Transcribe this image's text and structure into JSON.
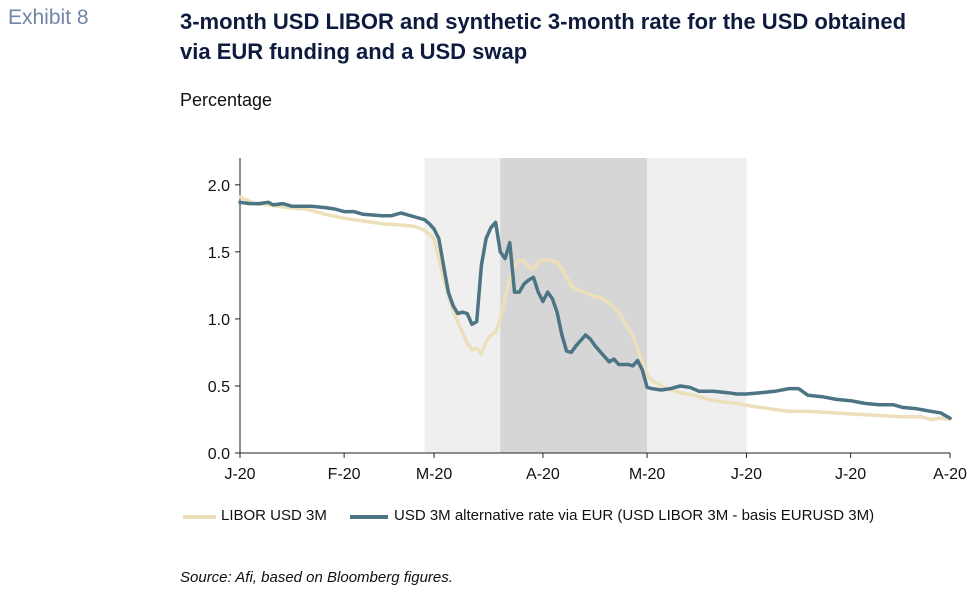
{
  "header": {
    "exhibit": "Exhibit 8",
    "title": "3-month USD LIBOR and synthetic 3-month rate for the USD obtained via EUR funding and a USD swap",
    "subtitle": "Percentage"
  },
  "footer": {
    "source": "Source: Afi, based on Bloomberg figures."
  },
  "chart_data": {
    "type": "line",
    "ylim": [
      0,
      2.2
    ],
    "yticks": [
      0.0,
      0.5,
      1.0,
      1.5,
      2.0
    ],
    "ytick_labels": [
      "0.0",
      "0.5",
      "1.0",
      "1.5",
      "2.0"
    ],
    "xlim": [
      0,
      150
    ],
    "xticks": [
      0,
      22,
      41,
      64,
      86,
      107,
      129,
      150
    ],
    "xtick_labels": [
      "J-20",
      "F-20",
      "M-20",
      "A-20",
      "M-20",
      "J-20",
      "J-20",
      "A-20"
    ],
    "shaded_regions": [
      {
        "start": 39,
        "end": 107,
        "color": "#efefef"
      },
      {
        "start": 55,
        "end": 86,
        "color": "#d6d6d6"
      }
    ],
    "legend_position": "bottom",
    "series": [
      {
        "name": "LIBOR USD 3M",
        "color": "#ecdfb9",
        "points": [
          [
            0,
            1.91
          ],
          [
            3,
            1.86
          ],
          [
            6,
            1.85
          ],
          [
            10,
            1.83
          ],
          [
            14,
            1.82
          ],
          [
            18,
            1.78
          ],
          [
            22,
            1.75
          ],
          [
            26,
            1.73
          ],
          [
            30,
            1.71
          ],
          [
            34,
            1.7
          ],
          [
            37,
            1.69
          ],
          [
            39,
            1.66
          ],
          [
            41,
            1.6
          ],
          [
            42,
            1.45
          ],
          [
            43,
            1.3
          ],
          [
            44,
            1.18
          ],
          [
            45,
            1.06
          ],
          [
            46,
            0.98
          ],
          [
            47,
            0.9
          ],
          [
            48,
            0.82
          ],
          [
            49,
            0.77
          ],
          [
            50,
            0.78
          ],
          [
            51,
            0.74
          ],
          [
            52,
            0.83
          ],
          [
            53,
            0.88
          ],
          [
            54,
            0.9
          ],
          [
            55,
            1.0
          ],
          [
            56,
            1.15
          ],
          [
            57,
            1.3
          ],
          [
            58,
            1.4
          ],
          [
            59,
            1.44
          ],
          [
            60,
            1.43
          ],
          [
            61,
            1.39
          ],
          [
            62,
            1.37
          ],
          [
            63,
            1.42
          ],
          [
            64,
            1.44
          ],
          [
            65,
            1.44
          ],
          [
            66,
            1.43
          ],
          [
            67,
            1.42
          ],
          [
            68,
            1.37
          ],
          [
            69,
            1.31
          ],
          [
            70,
            1.25
          ],
          [
            71,
            1.22
          ],
          [
            72,
            1.21
          ],
          [
            74,
            1.18
          ],
          [
            76,
            1.16
          ],
          [
            78,
            1.12
          ],
          [
            80,
            1.05
          ],
          [
            82,
            0.93
          ],
          [
            83,
            0.87
          ],
          [
            84,
            0.78
          ],
          [
            85,
            0.68
          ],
          [
            86,
            0.58
          ],
          [
            87,
            0.54
          ],
          [
            88,
            0.52
          ],
          [
            90,
            0.48
          ],
          [
            93,
            0.45
          ],
          [
            96,
            0.43
          ],
          [
            99,
            0.4
          ],
          [
            102,
            0.38
          ],
          [
            105,
            0.37
          ],
          [
            108,
            0.35
          ],
          [
            112,
            0.33
          ],
          [
            116,
            0.31
          ],
          [
            120,
            0.31
          ],
          [
            125,
            0.3
          ],
          [
            130,
            0.29
          ],
          [
            135,
            0.28
          ],
          [
            140,
            0.27
          ],
          [
            144,
            0.27
          ],
          [
            146,
            0.25
          ],
          [
            148,
            0.26
          ],
          [
            150,
            0.25
          ]
        ]
      },
      {
        "name": "USD 3M alternative rate via EUR (USD LIBOR 3M - basis EURUSD 3M)",
        "color": "#4b7584",
        "points": [
          [
            0,
            1.87
          ],
          [
            2,
            1.86
          ],
          [
            4,
            1.86
          ],
          [
            6,
            1.87
          ],
          [
            7,
            1.85
          ],
          [
            9,
            1.86
          ],
          [
            11,
            1.84
          ],
          [
            13,
            1.84
          ],
          [
            15,
            1.84
          ],
          [
            18,
            1.83
          ],
          [
            20,
            1.82
          ],
          [
            22,
            1.8
          ],
          [
            24,
            1.8
          ],
          [
            26,
            1.78
          ],
          [
            30,
            1.77
          ],
          [
            32,
            1.77
          ],
          [
            34,
            1.79
          ],
          [
            35,
            1.78
          ],
          [
            37,
            1.76
          ],
          [
            39,
            1.74
          ],
          [
            40,
            1.71
          ],
          [
            41,
            1.67
          ],
          [
            42,
            1.6
          ],
          [
            43,
            1.4
          ],
          [
            44,
            1.2
          ],
          [
            45,
            1.1
          ],
          [
            46,
            1.04
          ],
          [
            47,
            1.05
          ],
          [
            48,
            1.04
          ],
          [
            49,
            0.96
          ],
          [
            50,
            0.98
          ],
          [
            51,
            1.4
          ],
          [
            52,
            1.6
          ],
          [
            53,
            1.68
          ],
          [
            54,
            1.72
          ],
          [
            55,
            1.5
          ],
          [
            56,
            1.45
          ],
          [
            57,
            1.57
          ],
          [
            58,
            1.2
          ],
          [
            59,
            1.2
          ],
          [
            60,
            1.26
          ],
          [
            61,
            1.29
          ],
          [
            62,
            1.31
          ],
          [
            63,
            1.2
          ],
          [
            64,
            1.13
          ],
          [
            65,
            1.2
          ],
          [
            66,
            1.15
          ],
          [
            67,
            1.05
          ],
          [
            68,
            0.88
          ],
          [
            69,
            0.76
          ],
          [
            70,
            0.75
          ],
          [
            71,
            0.8
          ],
          [
            72,
            0.84
          ],
          [
            73,
            0.88
          ],
          [
            74,
            0.85
          ],
          [
            75,
            0.8
          ],
          [
            76,
            0.76
          ],
          [
            77,
            0.72
          ],
          [
            78,
            0.68
          ],
          [
            79,
            0.7
          ],
          [
            80,
            0.66
          ],
          [
            82,
            0.66
          ],
          [
            83,
            0.65
          ],
          [
            84,
            0.69
          ],
          [
            85,
            0.62
          ],
          [
            86,
            0.49
          ],
          [
            87,
            0.48
          ],
          [
            89,
            0.47
          ],
          [
            91,
            0.48
          ],
          [
            93,
            0.5
          ],
          [
            95,
            0.49
          ],
          [
            97,
            0.46
          ],
          [
            100,
            0.46
          ],
          [
            103,
            0.45
          ],
          [
            105,
            0.44
          ],
          [
            107,
            0.44
          ],
          [
            110,
            0.45
          ],
          [
            113,
            0.46
          ],
          [
            116,
            0.48
          ],
          [
            118,
            0.48
          ],
          [
            120,
            0.43
          ],
          [
            123,
            0.42
          ],
          [
            126,
            0.4
          ],
          [
            129,
            0.39
          ],
          [
            132,
            0.37
          ],
          [
            135,
            0.36
          ],
          [
            138,
            0.36
          ],
          [
            140,
            0.34
          ],
          [
            143,
            0.33
          ],
          [
            146,
            0.31
          ],
          [
            148,
            0.3
          ],
          [
            150,
            0.26
          ]
        ]
      }
    ]
  }
}
